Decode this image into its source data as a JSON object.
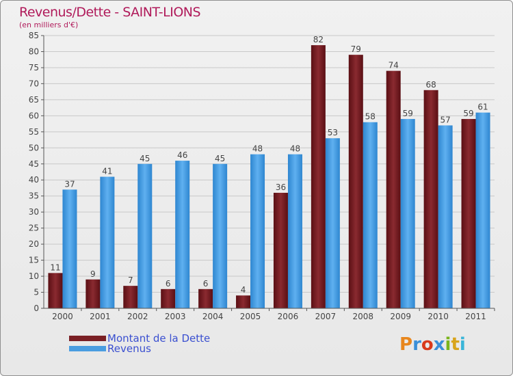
{
  "title": "Revenus/Dette - SAINT-LIONS",
  "subtitle": "(en milliers d'€)",
  "logo_text": "Proxiti",
  "logo_colors": [
    "#e8861c",
    "#3a8fd8",
    "#d83a1c",
    "#3a8fd8",
    "#7ab51c",
    "#d8a41c",
    "#3ab5d8"
  ],
  "chart_data": {
    "type": "bar",
    "categories": [
      "2000",
      "2001",
      "2002",
      "2003",
      "2004",
      "2005",
      "2006",
      "2007",
      "2008",
      "2009",
      "2010",
      "2011"
    ],
    "series": [
      {
        "name": "Montant de la Dette",
        "color": "#7a1f24",
        "values": [
          11,
          9,
          7,
          6,
          6,
          4,
          36,
          82,
          79,
          74,
          68,
          59
        ]
      },
      {
        "name": "Revenus",
        "color": "#4a9de0",
        "values": [
          37,
          41,
          45,
          46,
          45,
          48,
          48,
          53,
          58,
          59,
          57,
          61
        ]
      }
    ],
    "ylim": [
      0,
      85
    ],
    "yticks": [
      0,
      5,
      10,
      15,
      20,
      25,
      30,
      35,
      40,
      45,
      50,
      55,
      60,
      65,
      70,
      75,
      80,
      85
    ],
    "grid": true,
    "legend_position": "bottom-left"
  }
}
